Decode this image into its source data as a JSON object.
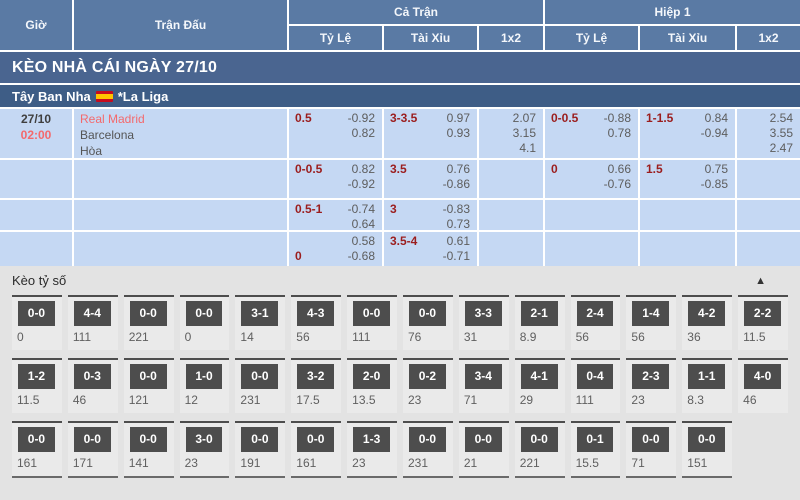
{
  "table": {
    "headers": {
      "time": "Giờ",
      "match": "Trận Đấu",
      "full_match": "Cả Trận",
      "first_half": "Hiệp 1",
      "odds": "Tỷ Lệ",
      "over_under": "Tài Xỉu",
      "one_x_two": "1x2"
    },
    "banner": "KÈO NHÀ CÁI NGÀY 27/10",
    "league": {
      "country": "Tây Ban Nha",
      "flag": "spain-flag",
      "name": "*La Liga"
    },
    "rows": [
      {
        "time": [
          "27/10",
          "02:00"
        ],
        "teams": [
          "Real Madrid",
          "Barcelona",
          "Hòa"
        ],
        "full": {
          "handicap": [
            [
              "0.5",
              "-0.92"
            ],
            [
              "",
              "0.82"
            ]
          ],
          "over_under": [
            [
              "3-3.5",
              "0.97"
            ],
            [
              "",
              "0.93"
            ]
          ],
          "one_x_two": [
            "2.07",
            "3.15",
            "4.1"
          ]
        },
        "half": {
          "handicap": [
            [
              "0-0.5",
              "-0.88"
            ],
            [
              "",
              "0.78"
            ]
          ],
          "over_under": [
            [
              "1-1.5",
              "0.84"
            ],
            [
              "",
              "-0.94"
            ]
          ],
          "one_x_two": [
            "2.54",
            "3.55",
            "2.47"
          ]
        }
      },
      {
        "time": [],
        "teams": [],
        "full": {
          "handicap": [
            [
              "0-0.5",
              "0.82"
            ],
            [
              "",
              "-0.92"
            ]
          ],
          "over_under": [
            [
              "3.5",
              "0.76"
            ],
            [
              "",
              "-0.86"
            ]
          ],
          "one_x_two": []
        },
        "half": {
          "handicap": [
            [
              "0",
              "0.66"
            ],
            [
              "",
              "-0.76"
            ]
          ],
          "over_under": [
            [
              "1.5",
              "0.75"
            ],
            [
              "",
              "-0.85"
            ]
          ],
          "one_x_two": []
        }
      },
      {
        "time": [],
        "teams": [],
        "full": {
          "handicap": [
            [
              "0.5-1",
              "-0.74"
            ],
            [
              "",
              "0.64"
            ]
          ],
          "over_under": [
            [
              "3",
              "-0.83"
            ],
            [
              "",
              "0.73"
            ]
          ],
          "one_x_two": []
        },
        "half": {
          "handicap": [],
          "over_under": [],
          "one_x_two": []
        }
      },
      {
        "time": [],
        "teams": [],
        "full": {
          "handicap": [
            [
              "",
              "0.58"
            ],
            [
              "0",
              "-0.68"
            ]
          ],
          "over_under": [
            [
              "3.5-4",
              "0.61"
            ],
            [
              "",
              "-0.71"
            ]
          ],
          "one_x_two": []
        },
        "half": {
          "handicap": [],
          "over_under": [],
          "one_x_two": []
        }
      }
    ]
  },
  "score_section": {
    "title": "Kèo tỷ số",
    "collapse_icon": "▲",
    "rows": [
      [
        {
          "score": "0-0",
          "odds": "0"
        },
        {
          "score": "4-4",
          "odds": "111"
        },
        {
          "score": "0-0",
          "odds": "221"
        },
        {
          "score": "0-0",
          "odds": "0"
        },
        {
          "score": "3-1",
          "odds": "14"
        },
        {
          "score": "4-3",
          "odds": "56"
        },
        {
          "score": "0-0",
          "odds": "111"
        },
        {
          "score": "0-0",
          "odds": "76"
        },
        {
          "score": "3-3",
          "odds": "31"
        },
        {
          "score": "2-1",
          "odds": "8.9"
        },
        {
          "score": "2-4",
          "odds": "56"
        },
        {
          "score": "1-4",
          "odds": "56"
        },
        {
          "score": "4-2",
          "odds": "36"
        },
        {
          "score": "2-2",
          "odds": "11.5"
        }
      ],
      [
        {
          "score": "1-2",
          "odds": "11.5"
        },
        {
          "score": "0-3",
          "odds": "46"
        },
        {
          "score": "0-0",
          "odds": "121"
        },
        {
          "score": "1-0",
          "odds": "12"
        },
        {
          "score": "0-0",
          "odds": "231"
        },
        {
          "score": "3-2",
          "odds": "17.5"
        },
        {
          "score": "2-0",
          "odds": "13.5"
        },
        {
          "score": "0-2",
          "odds": "23"
        },
        {
          "score": "3-4",
          "odds": "71"
        },
        {
          "score": "4-1",
          "odds": "29"
        },
        {
          "score": "0-4",
          "odds": "111"
        },
        {
          "score": "2-3",
          "odds": "23"
        },
        {
          "score": "1-1",
          "odds": "8.3"
        },
        {
          "score": "4-0",
          "odds": "46"
        }
      ],
      [
        {
          "score": "0-0",
          "odds": "161"
        },
        {
          "score": "0-0",
          "odds": "171"
        },
        {
          "score": "0-0",
          "odds": "141"
        },
        {
          "score": "3-0",
          "odds": "23"
        },
        {
          "score": "0-0",
          "odds": "191"
        },
        {
          "score": "0-0",
          "odds": "161"
        },
        {
          "score": "1-3",
          "odds": "23"
        },
        {
          "score": "0-0",
          "odds": "231"
        },
        {
          "score": "0-0",
          "odds": "21"
        },
        {
          "score": "0-0",
          "odds": "221"
        },
        {
          "score": "0-1",
          "odds": "15.5"
        },
        {
          "score": "0-0",
          "odds": "71"
        },
        {
          "score": "0-0",
          "odds": "151"
        }
      ]
    ]
  },
  "colors": {
    "header_blue": "#5a7aa4",
    "banner_blue": "#4a6590",
    "league_blue": "#3e5d86",
    "row_light_blue": "#c5d8f3",
    "handicap_red": "#9b1d1d",
    "value_gray": "#5d5d5d",
    "highlight_red": "#f4696c",
    "score_box_gray": "#4d4d4d",
    "section_bg": "#e3e3e3"
  }
}
